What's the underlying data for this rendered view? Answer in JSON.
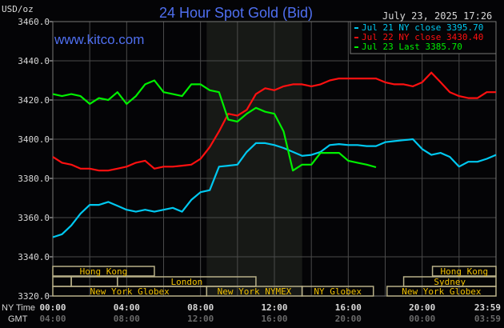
{
  "title": "24 Hour Spot Gold (Bid)",
  "timestamp": "July 23, 2025 17:26",
  "watermark": "www.kitco.com",
  "colors": {
    "title": "#4f6ff0",
    "jul21": "#00c8f0",
    "jul22": "#ff1010",
    "jul23": "#00f000",
    "session_text": "#f0c000",
    "session_border": "#b8b088",
    "grid": "#4a4a4a",
    "nymex_shade": "#171916"
  },
  "chart_data": {
    "type": "line",
    "title": "24 Hour Spot Gold (Bid)",
    "ylabel": "USD/oz",
    "ylim": [
      3320,
      3460
    ],
    "yticks": [
      "3460.0",
      "3440.0",
      "3420.0",
      "3400.0",
      "3380.0",
      "3360.0",
      "3340.0",
      "3320.0"
    ],
    "xlim_hours": [
      0,
      24
    ],
    "x_row_labels": {
      "ny": "NY Time",
      "gmt": "GMT"
    },
    "xticks_ny": [
      "00:00",
      "04:00",
      "08:00",
      "12:00",
      "16:00",
      "20:00",
      "23:59"
    ],
    "xticks_gmt": [
      "04:00",
      "08:00",
      "12:00",
      "16:00",
      "20:00",
      "00:00",
      "03:59"
    ],
    "grid": true,
    "legend_position": "top-right",
    "nymex_shade_hours": [
      8.33,
      13.5
    ],
    "x_hours": [
      0,
      0.5,
      1,
      1.5,
      2,
      2.5,
      3,
      3.5,
      4,
      4.5,
      5,
      5.5,
      6,
      6.5,
      7,
      7.5,
      8,
      8.5,
      9,
      9.5,
      10,
      10.5,
      11,
      11.5,
      12,
      12.5,
      13,
      13.5,
      14,
      14.5,
      15,
      15.5,
      16,
      16.5,
      17,
      17.5,
      18,
      18.5,
      19,
      19.5,
      20,
      20.5,
      21,
      21.5,
      22,
      22.5,
      23,
      23.5,
      24
    ],
    "series": [
      {
        "name": "Jul 21 NY close 3395.70",
        "key": "jul21",
        "values": [
          3350,
          3351.5,
          3356,
          3362,
          3366.5,
          3366.5,
          3368,
          3366,
          3364,
          3363,
          3364,
          3363,
          3364,
          3365,
          3363,
          3369,
          3373,
          3374,
          3386,
          3386.5,
          3387,
          3393.5,
          3398,
          3398,
          3397,
          3395.5,
          3393.5,
          3391.5,
          3392,
          3393.5,
          3397,
          3397.5,
          3397,
          3397,
          3396.5,
          3396.5,
          3398.5,
          3399,
          3399.5,
          3400,
          3395,
          3392,
          3393,
          3391,
          3386,
          3388.5,
          3388.5,
          3390,
          3392
        ]
      },
      {
        "name": "Jul 22 NY close 3430.40",
        "key": "jul22",
        "values": [
          3391,
          3388,
          3387,
          3385,
          3385,
          3384,
          3384,
          3385,
          3386,
          3388,
          3389,
          3385,
          3386,
          3386,
          3386.5,
          3387,
          3390,
          3396,
          3404,
          3413,
          3412,
          3415,
          3423,
          3426,
          3425,
          3427,
          3428,
          3428,
          3427,
          3428,
          3430,
          3431,
          3431,
          3431,
          3431,
          3431,
          3429,
          3428,
          3428,
          3427,
          3429,
          3434,
          3429,
          3424,
          3422,
          3421,
          3421,
          3424,
          3424
        ]
      },
      {
        "name": "Jul 23 Last 3385.70",
        "key": "jul23",
        "values": [
          3423,
          3422,
          3423,
          3422,
          3418,
          3421,
          3420,
          3424,
          3418,
          3422,
          3428,
          3430,
          3424,
          3423,
          3422,
          3428,
          3428,
          3425,
          3424,
          3410,
          3409,
          3413,
          3416,
          3414,
          3413,
          3404,
          3384,
          3387,
          3387,
          3393,
          3393,
          3393,
          3389,
          3388,
          3387,
          3385.7
        ]
      }
    ],
    "sessions": [
      {
        "label": "Hong Kong",
        "row": 0,
        "start": 0,
        "end": 5.5
      },
      {
        "label": "Hong Kong",
        "row": 0,
        "start": 20.56,
        "end": 24
      },
      {
        "label": "",
        "row": 1,
        "start": 0,
        "end": 1
      },
      {
        "label": "",
        "row": 1,
        "start": 1,
        "end": 3.5
      },
      {
        "label": "London",
        "row": 1,
        "start": 3.5,
        "end": 11
      },
      {
        "label": "Sydney",
        "row": 1,
        "start": 19,
        "end": 24
      },
      {
        "label": "New York Globex",
        "row": 2,
        "start": 0,
        "end": 8.33
      },
      {
        "label": "New York NYMEX",
        "row": 2,
        "start": 8.33,
        "end": 13.5
      },
      {
        "label": "NY Globex",
        "row": 2,
        "start": 13.5,
        "end": 17.36
      },
      {
        "label": "New York Globex",
        "row": 2,
        "start": 18.1,
        "end": 24
      }
    ]
  }
}
